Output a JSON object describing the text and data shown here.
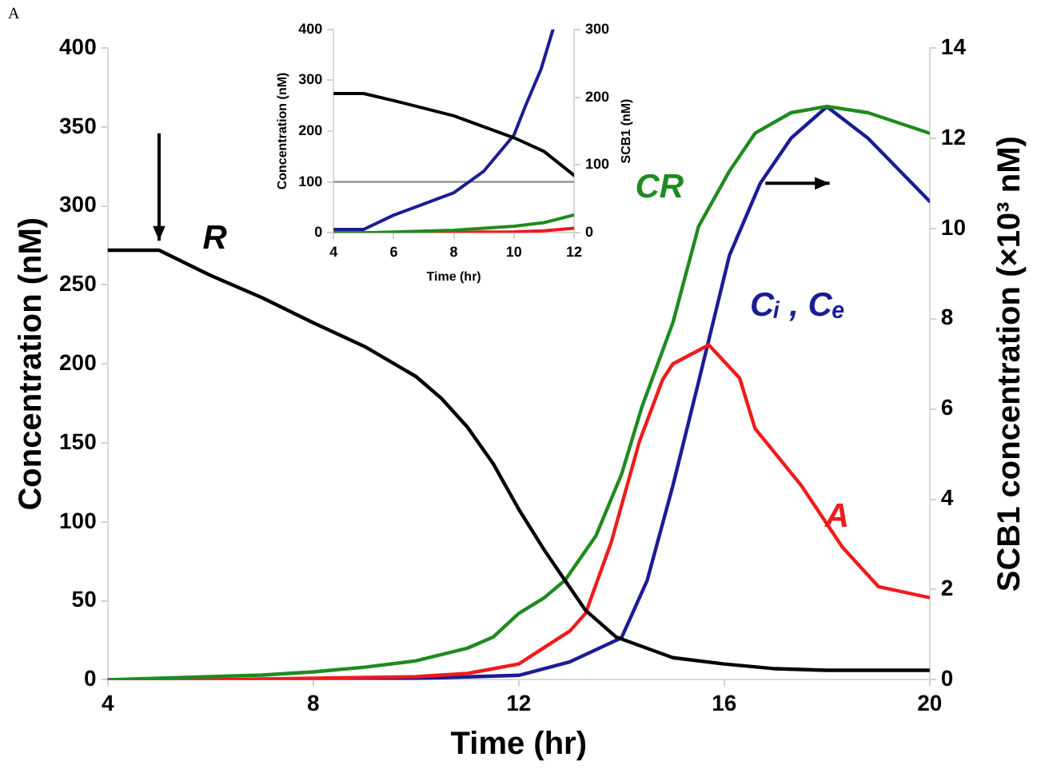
{
  "chart_data": [
    {
      "type": "line",
      "annotations": [
        "A"
      ],
      "xlabel": "Time (hr)",
      "ylabel": "Concentration (nM)",
      "y2label": "SCB1 concentration (×10³ nM)",
      "xlim": [
        4,
        20
      ],
      "xticks": [
        4,
        8,
        12,
        16,
        20
      ],
      "ylim": [
        0,
        400
      ],
      "yticks": [
        0,
        50,
        100,
        150,
        200,
        250,
        300,
        350,
        400
      ],
      "y2lim": [
        0,
        14
      ],
      "y2ticks": [
        0,
        2,
        4,
        6,
        8,
        10,
        12,
        14
      ],
      "series": [
        {
          "name": "R",
          "color": "#000000",
          "x": [
            4,
            5,
            6,
            7,
            8,
            9,
            10,
            10.5,
            11,
            11.5,
            12,
            12.5,
            12.9,
            13.3,
            13.9,
            15,
            16,
            17,
            18,
            20
          ],
          "values": [
            272,
            272,
            256,
            242,
            226,
            211,
            192,
            178,
            160,
            137,
            108,
            82,
            63,
            44,
            27,
            14,
            10,
            7,
            6,
            6
          ]
        },
        {
          "name": "CR",
          "color": "#208a20",
          "x": [
            4,
            5,
            6,
            7,
            8,
            9,
            10,
            11,
            11.5,
            12,
            12.5,
            12.9,
            13.5,
            14,
            14.4,
            15,
            15.5,
            16.1,
            16.6,
            17.3,
            18,
            18.8,
            20
          ],
          "values": [
            0,
            1,
            2,
            3,
            5,
            8,
            12,
            20,
            27,
            42,
            52,
            63,
            91,
            130,
            173,
            226,
            287,
            322,
            346,
            359,
            363,
            359,
            346
          ]
        },
        {
          "name": "A",
          "color": "#ee1c1c",
          "x": [
            4,
            6,
            8,
            10,
            11,
            12,
            13,
            13.3,
            13.8,
            14.35,
            14.8,
            15,
            15.7,
            16.3,
            16.6,
            17.5,
            18.3,
            19,
            20
          ],
          "values": [
            0,
            0,
            1,
            2,
            4,
            10,
            31,
            42,
            87,
            151,
            190,
            200,
            212,
            191,
            159,
            123,
            84,
            59,
            52
          ]
        },
        {
          "name": "Cᵢ , Cₑ",
          "color": "#1c1c96",
          "axis": "y2",
          "x": [
            4,
            6,
            8,
            10,
            12,
            13,
            14,
            14.5,
            15,
            15.5,
            16.1,
            16.7,
            17.3,
            18,
            18.8,
            20
          ],
          "values": [
            0,
            0,
            0,
            0.03,
            0.1,
            0.4,
            0.93,
            2.2,
            4.3,
            6.6,
            9.4,
            11,
            12,
            12.7,
            12,
            10.6
          ]
        }
      ]
    },
    {
      "type": "line",
      "xlabel": "Time (hr)",
      "ylabel": "Concentration (nM)",
      "y2label": "SCB1 (nM)",
      "xlim": [
        4,
        12
      ],
      "xticks": [
        4,
        6,
        8,
        10,
        12
      ],
      "ylim": [
        0,
        400
      ],
      "yticks": [
        0,
        100,
        200,
        300,
        400
      ],
      "y2lim": [
        0,
        300
      ],
      "y2ticks": [
        0,
        100,
        200,
        300
      ],
      "ref_lines": [
        {
          "axis": "y",
          "value": 100,
          "color": "#7f7f7f"
        }
      ],
      "series": [
        {
          "color": "#000000",
          "x": [
            4,
            5,
            6,
            8,
            10,
            11,
            12
          ],
          "values": [
            274,
            274,
            260,
            230,
            187,
            160,
            113
          ]
        },
        {
          "color": "#208a20",
          "x": [
            4,
            5,
            8,
            10,
            11,
            12
          ],
          "values": [
            0,
            0,
            5,
            13,
            20,
            35
          ]
        },
        {
          "color": "#ee1c1c",
          "x": [
            4,
            5,
            8,
            10,
            11,
            12
          ],
          "values": [
            0,
            0,
            1,
            2,
            4,
            9
          ]
        },
        {
          "color": "#1c1c96",
          "axis": "y2",
          "x": [
            4,
            5,
            6,
            8,
            9,
            10,
            10.4,
            10.9,
            11.3
          ],
          "values": [
            5,
            5,
            26,
            59,
            91,
            144,
            189,
            241,
            300
          ]
        }
      ]
    }
  ]
}
